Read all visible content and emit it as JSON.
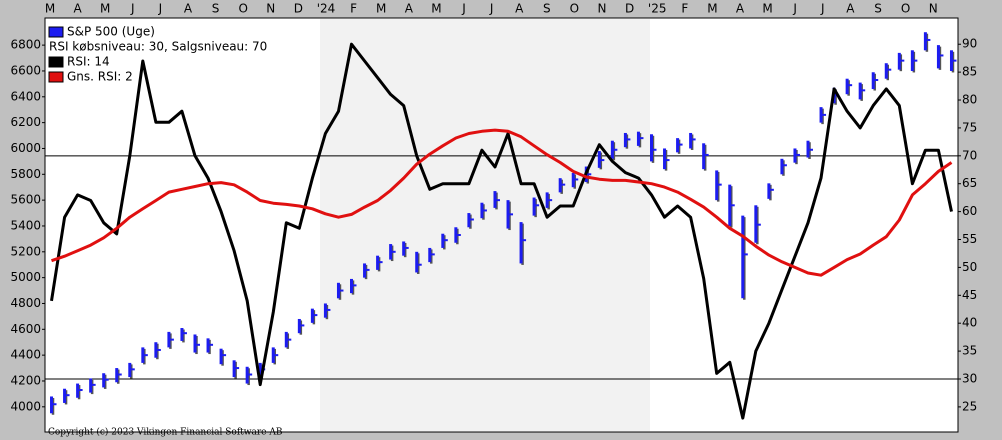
{
  "chart_data": {
    "type": "ohlc",
    "month_labels": [
      "M",
      "A",
      "M",
      "J",
      "J",
      "A",
      "S",
      "O",
      "N",
      "D",
      "'24",
      "F",
      "M",
      "A",
      "M",
      "J",
      "J",
      "A",
      "S",
      "O",
      "N",
      "D",
      "'25",
      "F",
      "M",
      "A",
      "M",
      "J",
      "J",
      "A",
      "S",
      "O",
      "N"
    ],
    "ylim": [
      3805,
      7010
    ],
    "yticks": [
      4000,
      4200,
      4400,
      4600,
      4800,
      5000,
      5200,
      5400,
      5600,
      5800,
      6000,
      6200,
      6400,
      6600,
      6800
    ],
    "y2lim": [
      20.5,
      94.7
    ],
    "y2ticks": [
      25,
      30,
      35,
      40,
      45,
      50,
      55,
      60,
      65,
      70,
      75,
      80,
      85,
      90
    ],
    "levels": [
      30,
      70
    ],
    "legend_note": "RSI købsniveau: 30, Salgsniveau: 70",
    "copyright": "Copyright (c) 2023 Vikingen Financial Software AB",
    "series": [
      {
        "name": "S&P 500 (Uge)",
        "color": "#1c1cf0",
        "type": "ohlc",
        "high": [
          4080,
          4140,
          4180,
          4220,
          4260,
          4300,
          4340,
          4460,
          4500,
          4580,
          4610,
          4560,
          4530,
          4450,
          4360,
          4310,
          4340,
          4460,
          4580,
          4680,
          4760,
          4800,
          4960,
          4990,
          5110,
          5170,
          5260,
          5280,
          5200,
          5230,
          5340,
          5390,
          5500,
          5580,
          5670,
          5600,
          5430,
          5620,
          5660,
          5770,
          5810,
          5860,
          5980,
          6060,
          6120,
          6130,
          6110,
          6000,
          6080,
          6120,
          6040,
          5830,
          5720,
          5480,
          5560,
          5730,
          5920,
          6000,
          6060,
          6320,
          6470,
          6540,
          6510,
          6590,
          6660,
          6740,
          6760,
          6900,
          6800,
          6760
        ],
        "low": [
          3950,
          4030,
          4070,
          4110,
          4150,
          4190,
          4230,
          4340,
          4380,
          4460,
          4510,
          4420,
          4420,
          4330,
          4230,
          4180,
          4230,
          4340,
          4460,
          4570,
          4650,
          4690,
          4840,
          4880,
          5000,
          5060,
          5140,
          5170,
          5040,
          5120,
          5230,
          5270,
          5390,
          5460,
          5540,
          5380,
          5110,
          5480,
          5540,
          5660,
          5700,
          5740,
          5850,
          5920,
          6010,
          6020,
          5900,
          5840,
          5970,
          6000,
          5840,
          5600,
          5400,
          4840,
          5270,
          5610,
          5800,
          5890,
          5930,
          6200,
          6350,
          6420,
          6380,
          6460,
          6540,
          6610,
          6600,
          6760,
          6620,
          6600
        ],
        "close": [
          4020,
          4090,
          4130,
          4170,
          4210,
          4250,
          4290,
          4400,
          4440,
          4520,
          4570,
          4480,
          4480,
          4400,
          4300,
          4250,
          4290,
          4400,
          4520,
          4630,
          4710,
          4750,
          4900,
          4940,
          5060,
          5120,
          5200,
          5230,
          5100,
          5180,
          5290,
          5330,
          5450,
          5520,
          5600,
          5490,
          5290,
          5560,
          5600,
          5720,
          5760,
          5800,
          5910,
          5990,
          6070,
          6080,
          5990,
          5910,
          6030,
          6070,
          5950,
          5720,
          5560,
          5180,
          5410,
          5680,
          5870,
          5950,
          5990,
          6260,
          6410,
          6490,
          6450,
          6530,
          6610,
          6680,
          6680,
          6840,
          6720,
          6680
        ]
      },
      {
        "name": "RSI: 14",
        "color": "#000000",
        "type": "line",
        "axis": "y2",
        "values": [
          44,
          59,
          63,
          62,
          58,
          56,
          70,
          87,
          76,
          76,
          78,
          70,
          66,
          60,
          53,
          44,
          29,
          42,
          58,
          57,
          66,
          74,
          78,
          90,
          87,
          84,
          81,
          79,
          70,
          64,
          65,
          65,
          65,
          71,
          68,
          74,
          65,
          65,
          59,
          61,
          61,
          67,
          72,
          69,
          67,
          66,
          63,
          59,
          61,
          59,
          48,
          31,
          33,
          23,
          35,
          40,
          46,
          52,
          58,
          66,
          82,
          78,
          75,
          79,
          82,
          79,
          65,
          71,
          71,
          60
        ]
      },
      {
        "name": "Gns. RSI: 2",
        "color": "#e01010",
        "type": "line",
        "axis": "y2",
        "values": [
          51.2,
          52,
          53,
          54,
          55.3,
          57,
          59,
          60.5,
          62,
          63.5,
          64,
          64.5,
          65,
          65.2,
          64.8,
          63.5,
          62,
          61.5,
          61.3,
          61,
          60.5,
          59.6,
          59,
          59.5,
          60.8,
          62,
          63.8,
          66,
          68.5,
          70.3,
          71.8,
          73.2,
          74,
          74.4,
          74.6,
          74.4,
          73.4,
          71.8,
          70.2,
          68.8,
          67.2,
          66.2,
          65.8,
          65.6,
          65.6,
          65.3,
          65,
          64.4,
          63.5,
          62.2,
          60.8,
          59,
          57,
          55.6,
          53.8,
          52.2,
          51,
          50,
          49,
          48.6,
          50,
          51.4,
          52.4,
          54,
          55.5,
          58.5,
          63,
          65,
          67.2,
          68.8
        ]
      }
    ]
  }
}
